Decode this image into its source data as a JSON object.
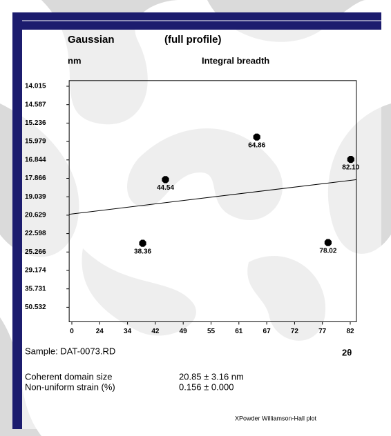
{
  "chart_data": {
    "type": "scatter",
    "title": "Gaussian",
    "subtitle": "(full profile)",
    "y_unit": "nm",
    "ylabel": "Integral breadth",
    "xlabel": "2θ",
    "scale": "even-ticks",
    "x": [
      38.36,
      44.54,
      64.86,
      78.02,
      82.1
    ],
    "x_value_labels": [
      "38.36",
      "44.54",
      "64.86",
      "78.02",
      "82.10"
    ],
    "values": [
      24.0,
      17.95,
      15.8,
      23.9,
      16.82
    ],
    "color": "#000000",
    "fit_line": {
      "x": [
        -2.3,
        83.1
      ],
      "values": [
        20.55,
        17.95
      ]
    },
    "xlim": [
      -2.3,
      83.1
    ],
    "xticks": [
      0,
      24,
      34,
      42,
      49,
      55,
      61,
      67,
      72,
      77,
      82
    ],
    "ylim": [
      13.84,
      62.2
    ],
    "yticks": [
      14.015,
      14.587,
      15.236,
      15.979,
      16.844,
      17.866,
      19.039,
      20.629,
      22.598,
      25.266,
      29.174,
      35.731,
      50.532
    ],
    "grid": false
  },
  "panel": {
    "sample": "Sample: DAT-0073.RD",
    "stats": [
      {
        "name": "Coherent domain size",
        "value": "20.85 ± 3.16 nm"
      },
      {
        "name": "Non-uniform strain (%)",
        "value": "0.156 ± 0.000"
      }
    ],
    "footer": "XPowder Williamson-Hall plot"
  }
}
